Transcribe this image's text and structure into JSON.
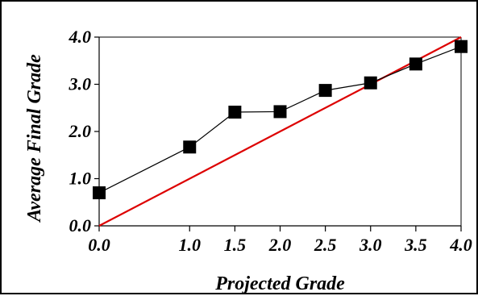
{
  "chart_data": {
    "type": "scatter",
    "title": "",
    "xlabel": "Projected Grade",
    "ylabel": "Average Final Grade",
    "xlim": [
      0,
      4
    ],
    "ylim": [
      0,
      4
    ],
    "x_ticks": [
      "0.0",
      "1.0",
      "1.5",
      "2.0",
      "2.5",
      "3.0",
      "3.5",
      "4.0"
    ],
    "x_tick_values": [
      0,
      1,
      1.5,
      2,
      2.5,
      3,
      3.5,
      4
    ],
    "y_ticks": [
      "0.0",
      "1.0",
      "2.0",
      "3.0",
      "4.0"
    ],
    "y_tick_values": [
      0,
      1,
      2,
      3,
      4
    ],
    "grid": false,
    "legend": "none",
    "series": [
      {
        "marker": "square",
        "color": "#000000",
        "line": true,
        "x": [
          0,
          1,
          1.5,
          2,
          2.5,
          3,
          3.5,
          4
        ],
        "y": [
          0.7,
          1.67,
          2.41,
          2.42,
          2.87,
          3.03,
          3.43,
          3.8
        ]
      }
    ],
    "reference_line": {
      "color": "#dd0000",
      "x": [
        0,
        4
      ],
      "y": [
        0,
        4
      ]
    }
  }
}
